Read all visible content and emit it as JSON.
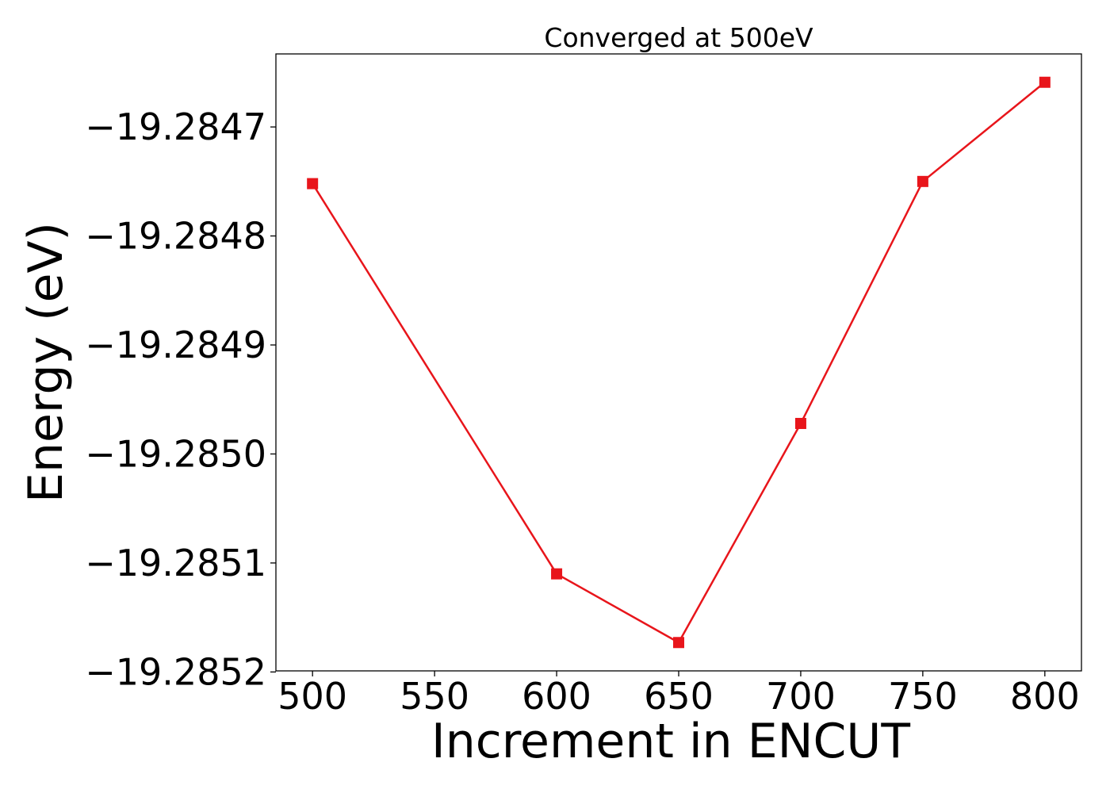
{
  "chart_data": {
    "type": "line",
    "title": "Converged at 500eV",
    "xlabel": "Increment in ENCUT",
    "ylabel": "Energy (eV)",
    "x": [
      500,
      600,
      650,
      700,
      750,
      800
    ],
    "series": [
      {
        "values": [
          -19.284752,
          -19.28511,
          -19.285173,
          -19.284972,
          -19.28475,
          -19.284659
        ],
        "color": "#e8151b",
        "marker": "square"
      }
    ],
    "xlim": [
      485,
      815
    ],
    "ylim": [
      -19.285199,
      -19.284633
    ],
    "xticks": [
      500,
      550,
      600,
      650,
      700,
      750,
      800
    ],
    "xtick_labels": [
      "500",
      "550",
      "600",
      "650",
      "700",
      "750",
      "800"
    ],
    "yticks": [
      -19.2847,
      -19.2848,
      -19.2849,
      -19.285,
      -19.2851,
      -19.2852
    ],
    "ytick_labels": [
      "−19.2847",
      "−19.2848",
      "−19.2849",
      "−19.2850",
      "−19.2851",
      "−19.2852"
    ],
    "grid": false,
    "legend": false
  }
}
